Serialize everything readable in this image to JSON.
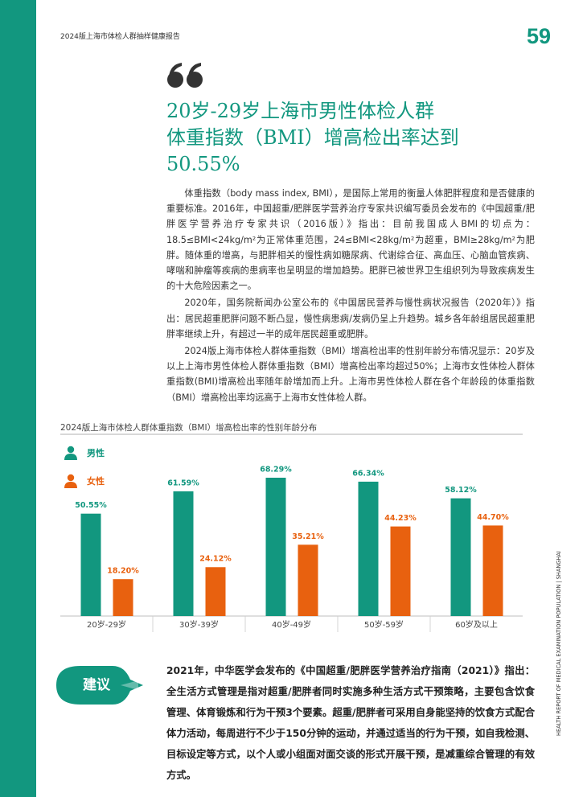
{
  "header": {
    "report_title": "2024版上海市体检人群抽样健康报告",
    "page_number": "59"
  },
  "title": {
    "lines": [
      "20岁-29岁上海市男性体检人群",
      "体重指数（BMI）增高检出率达到",
      "50.55%"
    ]
  },
  "body": {
    "paragraphs": [
      "体重指数（body mass index, BMI），是国际上常用的衡量人体肥胖程度和是否健康的重要标准。2016年，中国超重/肥胖医学营养治疗专家共识编写委员会发布的《中国超重/肥胖医学营养治疗专家共识（2016版）》指出：目前我国成人BMI的切点为：18.5≤BMI<24kg/m²为正常体重范围，24≤BMI<28kg/m²为超重，BMI≥28kg/m²为肥胖。随体重的增高，与肥胖相关的慢性病如糖尿病、代谢综合征、高血压、心脑血管疾病、哮喘和肿瘤等疾病的患病率也呈明显的增加趋势。肥胖已被世界卫生组织列为导致疾病发生的十大危险因素之一。",
      "2020年，国务院新闻办公室公布的《中国居民营养与慢性病状况报告（2020年）》指出：居民超重肥胖问题不断凸显，慢性病患病/发病仍呈上升趋势。城乡各年龄组居民超重肥胖率继续上升，有超过一半的成年居民超重或肥胖。",
      "2024版上海市体检人群体重指数（BMI）增高检出率的性别年龄分布情况显示：20岁及以上上海市男性体检人群体重指数（BMI）增高检出率均超过50%；上海市女性体检人群体重指数(BMI)增高检出率随年龄增加而上升。上海市男性体检人群在各个年龄段的体重指数（BMI）增高检出率均远高于上海市女性体检人群。"
    ]
  },
  "chart_data": {
    "type": "bar",
    "title": "2024版上海市体检人群体重指数（BMI）增高检出率的性别年龄分布",
    "categories": [
      "20岁-29岁",
      "30岁-39岁",
      "40岁-49岁",
      "50岁-59岁",
      "60岁及以上"
    ],
    "series": [
      {
        "name": "男性",
        "color": "#12977f",
        "values": [
          50.55,
          61.59,
          68.29,
          66.34,
          58.12
        ],
        "value_labels": [
          "50.55%",
          "61.59%",
          "68.29%",
          "66.34%",
          "58.12%"
        ]
      },
      {
        "name": "女性",
        "color": "#e8610f",
        "values": [
          18.2,
          24.12,
          35.21,
          44.23,
          44.7
        ],
        "value_labels": [
          "18.20%",
          "24.12%",
          "35.21%",
          "44.23%",
          "44.70%"
        ]
      }
    ]
  },
  "advice": {
    "label": "建议",
    "text": "2021年，中华医学会发布的《中国超重/肥胖医学营养治疗指南（2021）》指出：全生活方式管理是指对超重/肥胖者同时实施多种生活方式干预策略，主要包含饮食管理、体育锻炼和行为干预3个要素。超重/肥胖者可采用自身能坚持的饮食方式配合体力活动，每周进行不少于150分钟的运动，并通过适当的行为干预，如自我检测、目标设定等方式，以个人或小组面对面交谈的形式开展干预，是减重综合管理的有效方式。"
  },
  "side_text": "HEALTH REPORT OF MEDICAL EXAMINATION POPULATION | SHANGHAI"
}
